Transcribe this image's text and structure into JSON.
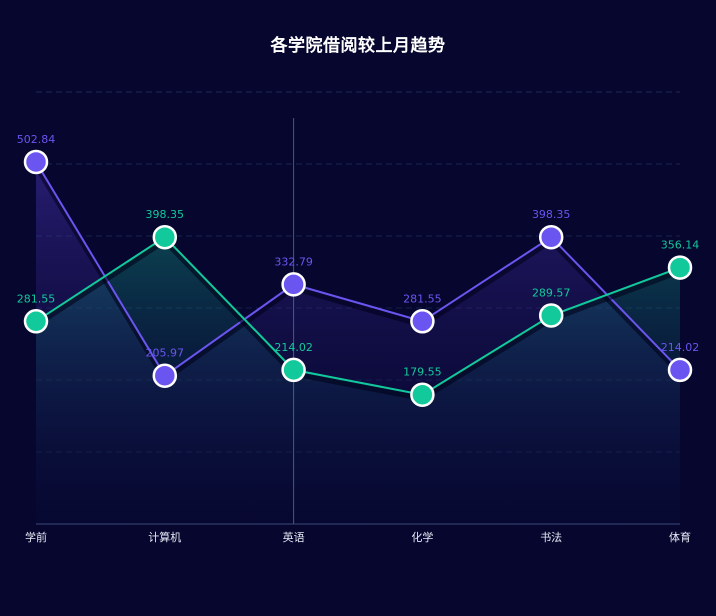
{
  "chart_data": {
    "type": "line",
    "title": "各学院借阅较上月趋势",
    "categories": [
      "学前",
      "计算机",
      "英语",
      "化学",
      "书法",
      "体育"
    ],
    "series": [
      {
        "values": [
          502.84,
          205.97,
          332.79,
          281.55,
          398.35,
          214.02
        ],
        "color": "#6b55f0"
      },
      {
        "values": [
          281.55,
          398.35,
          214.02,
          179.55,
          289.57,
          356.14
        ],
        "color": "#12c99b"
      }
    ],
    "ylim": [
      0,
      600
    ],
    "grid": true,
    "area_fill": true,
    "legend": "none",
    "data_labels": true,
    "crosshair_category": "英语"
  }
}
